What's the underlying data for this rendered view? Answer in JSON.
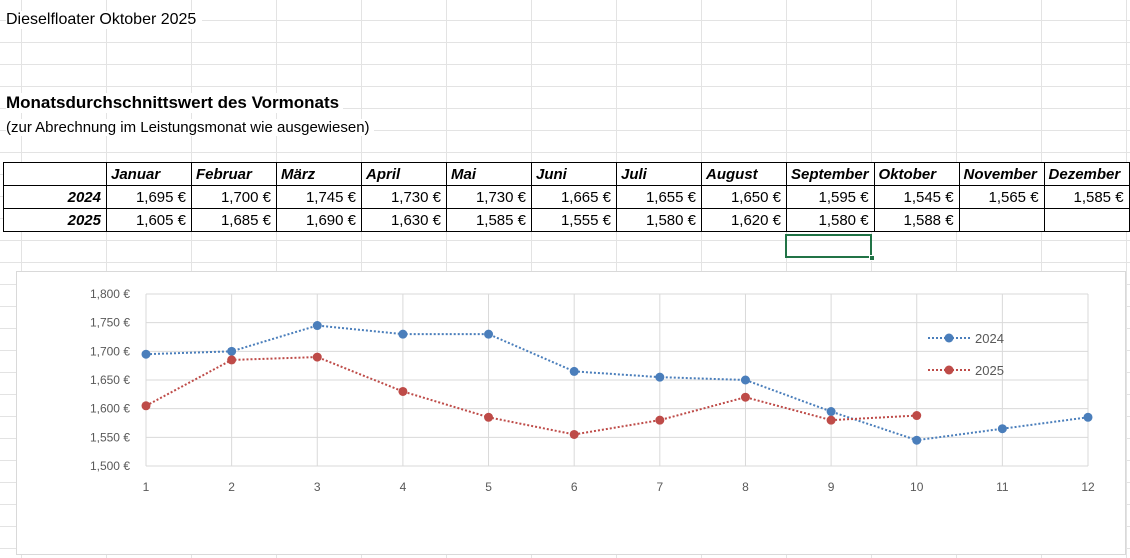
{
  "document": {
    "title": "Dieselfloater Oktober 2025",
    "heading": "Monatsdurchschnittswert des Vormonats",
    "subheading": "(zur Abrechnung im Leistungsmonat wie ausgewiesen)"
  },
  "table": {
    "months": [
      "Januar",
      "Februar",
      "März",
      "April",
      "Mai",
      "Juni",
      "Juli",
      "August",
      "September",
      "Oktober",
      "November",
      "Dezember"
    ],
    "rows": [
      {
        "year": "2024",
        "values": [
          "1,695 €",
          "1,700 €",
          "1,745 €",
          "1,730 €",
          "1,730 €",
          "1,665 €",
          "1,655 €",
          "1,650 €",
          "1,595 €",
          "1,545 €",
          "1,565 €",
          "1,585 €"
        ]
      },
      {
        "year": "2025",
        "values": [
          "1,605 €",
          "1,685 €",
          "1,690 €",
          "1,630 €",
          "1,585 €",
          "1,555 €",
          "1,580 €",
          "1,620 €",
          "1,580 €",
          "1,588 €",
          "",
          ""
        ]
      }
    ]
  },
  "colors": {
    "series_2024": "#4a7ebb",
    "series_2025": "#be4b48",
    "selection": "#217346",
    "gridline": "#d9d9d9"
  },
  "chart_data": {
    "type": "line",
    "x": [
      1,
      2,
      3,
      4,
      5,
      6,
      7,
      8,
      9,
      10,
      11,
      12
    ],
    "ylim": [
      1.5,
      1.8
    ],
    "yticks": [
      "1,500 €",
      "1,550 €",
      "1,600 €",
      "1,650 €",
      "1,700 €",
      "1,750 €",
      "1,800 €"
    ],
    "ytick_values": [
      1.5,
      1.55,
      1.6,
      1.65,
      1.7,
      1.75,
      1.8
    ],
    "grid": true,
    "legend": "right",
    "series": [
      {
        "name": "2024",
        "values": [
          1.695,
          1.7,
          1.745,
          1.73,
          1.73,
          1.665,
          1.655,
          1.65,
          1.595,
          1.545,
          1.565,
          1.585
        ]
      },
      {
        "name": "2025",
        "values": [
          1.605,
          1.685,
          1.69,
          1.63,
          1.585,
          1.555,
          1.58,
          1.62,
          1.58,
          1.588,
          null,
          null
        ]
      }
    ]
  }
}
